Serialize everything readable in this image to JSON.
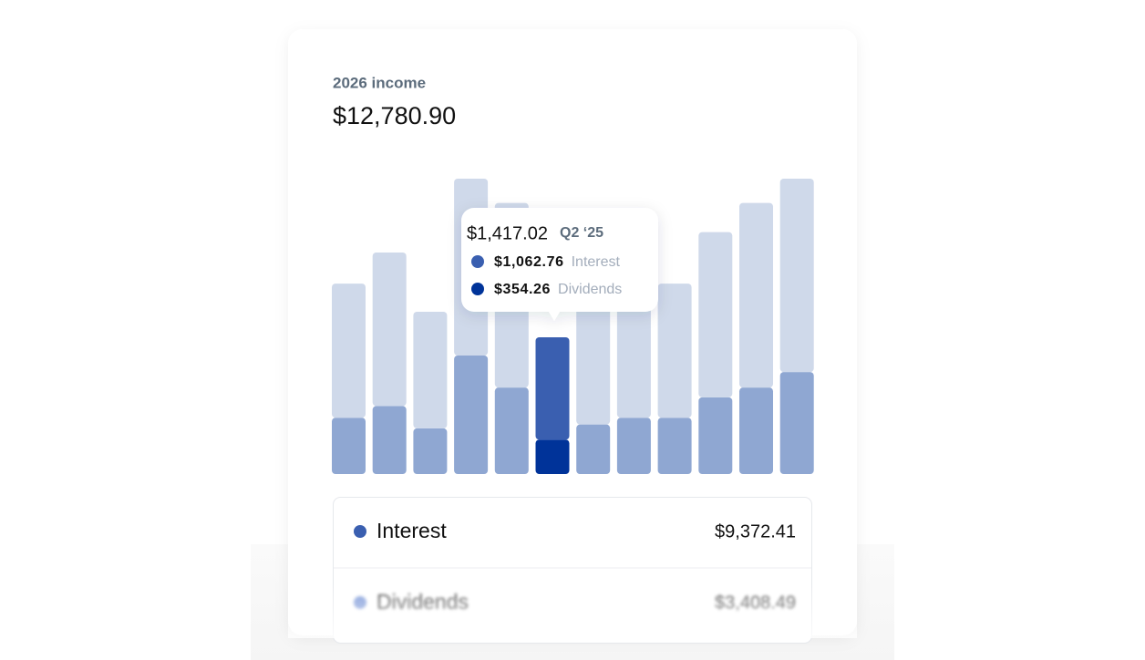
{
  "chart_data": {
    "type": "bar",
    "stacked": true,
    "title": "2026 income",
    "total": "$12,780.90",
    "categories": [
      null,
      null,
      null,
      null,
      null,
      "Q2 ‘25",
      null,
      null,
      null,
      null,
      null,
      null
    ],
    "tooltip_total": "$1,417.02",
    "series": [
      {
        "name": "Interest",
        "color": "#3a5fb0",
        "inactive_color": "#cfd9ea",
        "total": "$9,372.41",
        "values": [
          1390,
          1590,
          1210,
          1830,
          1910,
          1062.76,
          1280,
          1300,
          1390,
          1710,
          1910,
          2000
        ],
        "value_labels": [
          null,
          null,
          null,
          null,
          null,
          "$1,062.76",
          null,
          null,
          null,
          null,
          null,
          null
        ]
      },
      {
        "name": "Dividends",
        "color": "#003399",
        "inactive_color": "#8fa7d2",
        "total": "$3,408.49",
        "values": [
          580,
          700,
          470,
          1220,
          890,
          354.26,
          510,
          580,
          580,
          790,
          890,
          1050
        ],
        "value_labels": [
          null,
          null,
          null,
          null,
          null,
          "$354.26",
          null,
          null,
          null,
          null,
          null,
          null
        ]
      }
    ]
  }
}
